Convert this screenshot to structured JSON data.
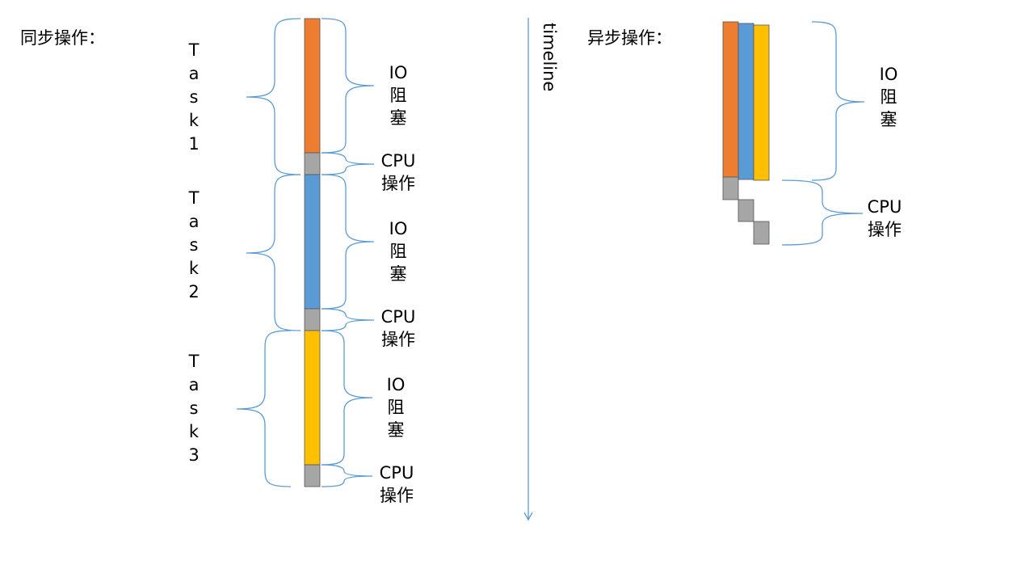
{
  "sync": {
    "title": "同步操作：",
    "tasks": [
      {
        "label": [
          "T",
          "a",
          "s",
          "k",
          "1"
        ],
        "io": [
          "IO",
          "阻",
          "塞"
        ],
        "cpu": [
          "CPU",
          "操作"
        ],
        "color": "#ed7d31"
      },
      {
        "label": [
          "T",
          "a",
          "s",
          "k",
          "2"
        ],
        "io": [
          "IO",
          "阻",
          "塞"
        ],
        "cpu": [
          "CPU",
          "操作"
        ],
        "color": "#5b9bd5"
      },
      {
        "label": [
          "T",
          "a",
          "s",
          "k",
          "3"
        ],
        "io": [
          "IO",
          "阻",
          "塞"
        ],
        "cpu": [
          "CPU",
          "操作"
        ],
        "color": "#ffc000"
      }
    ]
  },
  "timeline": {
    "label": "timeline"
  },
  "async": {
    "title": "异步操作：",
    "io": [
      "IO",
      "阻",
      "塞"
    ],
    "cpu": [
      "CPU",
      "操作"
    ]
  },
  "colors": {
    "cpu": "#a6a6a6",
    "brace": "#5b9bd5"
  }
}
